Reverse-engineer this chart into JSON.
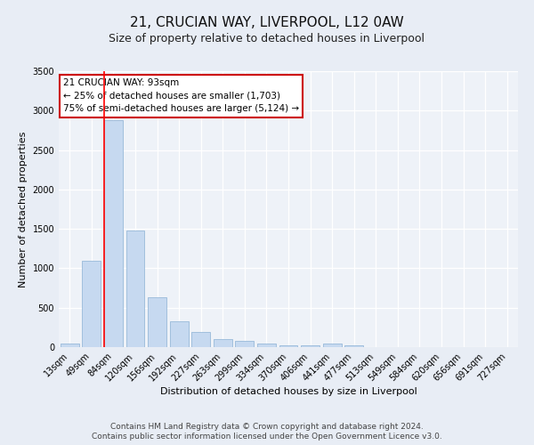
{
  "title": "21, CRUCIAN WAY, LIVERPOOL, L12 0AW",
  "subtitle": "Size of property relative to detached houses in Liverpool",
  "xlabel": "Distribution of detached houses by size in Liverpool",
  "ylabel": "Number of detached properties",
  "bar_labels": [
    "13sqm",
    "49sqm",
    "84sqm",
    "120sqm",
    "156sqm",
    "192sqm",
    "227sqm",
    "263sqm",
    "299sqm",
    "334sqm",
    "370sqm",
    "406sqm",
    "441sqm",
    "477sqm",
    "513sqm",
    "549sqm",
    "584sqm",
    "620sqm",
    "656sqm",
    "691sqm",
    "727sqm"
  ],
  "bar_values": [
    50,
    1100,
    2880,
    1480,
    630,
    330,
    190,
    100,
    75,
    45,
    25,
    20,
    40,
    25,
    0,
    0,
    0,
    0,
    0,
    0,
    0
  ],
  "bar_color": "#c6d9f0",
  "bar_edgecolor": "#8ab0d4",
  "ylim": [
    0,
    3500
  ],
  "yticks": [
    0,
    500,
    1000,
    1500,
    2000,
    2500,
    3000,
    3500
  ],
  "red_line_index": 2,
  "annotation_text": "21 CRUCIAN WAY: 93sqm\n← 25% of detached houses are smaller (1,703)\n75% of semi-detached houses are larger (5,124) →",
  "annotation_box_color": "#ffffff",
  "annotation_box_edgecolor": "#cc0000",
  "footnote1": "Contains HM Land Registry data © Crown copyright and database right 2024.",
  "footnote2": "Contains public sector information licensed under the Open Government Licence v3.0.",
  "bg_color": "#e8edf5",
  "plot_bg_color": "#eef2f8",
  "grid_color": "#ffffff",
  "title_fontsize": 11,
  "subtitle_fontsize": 9,
  "axis_label_fontsize": 8,
  "tick_fontsize": 7,
  "annotation_fontsize": 7.5,
  "footnote_fontsize": 6.5
}
